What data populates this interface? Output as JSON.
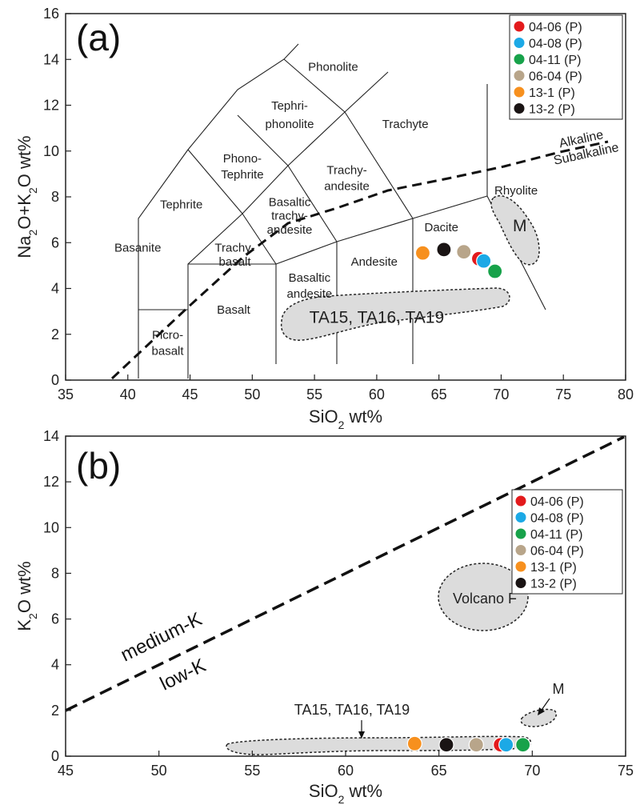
{
  "chart_data": [
    {
      "type": "scatter",
      "panel_label": "(a)",
      "xlabel": "SiO2 wt%",
      "ylabel": "Na2O+K2O wt%",
      "xlim": [
        35,
        80
      ],
      "ylim": [
        0,
        16
      ],
      "xticks": [
        "35",
        "40",
        "45",
        "50",
        "55",
        "60",
        "65",
        "70",
        "75",
        "80"
      ],
      "yticks": [
        "0",
        "2",
        "4",
        "6",
        "8",
        "10",
        "12",
        "14",
        "16"
      ],
      "legend_position": "top-right",
      "fields": [
        {
          "name": "Phonolite",
          "x": 56.5,
          "y": 13.5
        },
        {
          "name": "Tephri-",
          "x": 53.0,
          "y": 11.8
        },
        {
          "name": "phonolite",
          "x": 53.0,
          "y": 11.0
        },
        {
          "name": "Trachyte",
          "x": 62.3,
          "y": 11.0
        },
        {
          "name": "Phono-",
          "x": 49.2,
          "y": 9.5
        },
        {
          "name": "Tephrite",
          "x": 49.2,
          "y": 8.8
        },
        {
          "name": "Trachy-",
          "x": 57.6,
          "y": 9.0
        },
        {
          "name": "andesite",
          "x": 57.6,
          "y": 8.3
        },
        {
          "name": "Tephrite",
          "x": 44.3,
          "y": 7.5
        },
        {
          "name": "Basaltic",
          "x": 53.0,
          "y": 7.6
        },
        {
          "name": "trachy-",
          "x": 53.0,
          "y": 7.0
        },
        {
          "name": "andesite",
          "x": 53.0,
          "y": 6.4
        },
        {
          "name": "Rhyolite",
          "x": 71.2,
          "y": 8.1
        },
        {
          "name": "Dacite",
          "x": 65.2,
          "y": 6.5
        },
        {
          "name": "Basanite",
          "x": 40.8,
          "y": 5.6
        },
        {
          "name": "Trachy-",
          "x": 48.6,
          "y": 5.6
        },
        {
          "name": "basalt",
          "x": 48.6,
          "y": 5.0
        },
        {
          "name": "Andesite",
          "x": 59.8,
          "y": 5.0
        },
        {
          "name": "Basaltic",
          "x": 54.6,
          "y": 4.3
        },
        {
          "name": "andesite",
          "x": 54.6,
          "y": 3.6
        },
        {
          "name": "Basalt",
          "x": 48.5,
          "y": 2.9
        },
        {
          "name": "Picro-",
          "x": 43.2,
          "y": 1.8
        },
        {
          "name": "basalt",
          "x": 43.2,
          "y": 1.1
        },
        {
          "name": "M",
          "x": 71.5,
          "y": 6.5
        },
        {
          "name": "TA15, TA16, TA19",
          "x": 60.0,
          "y": 2.5
        }
      ],
      "boundary_labels": [
        {
          "text": "Alkaline",
          "x": 76.5,
          "y": 10.35,
          "angle": -12
        },
        {
          "text": "Subalkaline",
          "x": 76.9,
          "y": 9.7,
          "angle": -12
        }
      ],
      "series": [
        {
          "name": "04-06 (P)",
          "color": "#e31a1c",
          "points": [
            [
              68.2,
              5.3
            ]
          ]
        },
        {
          "name": "04-08 (P)",
          "color": "#1ca9e6",
          "points": [
            [
              68.6,
              5.2
            ]
          ]
        },
        {
          "name": "04-11 (P)",
          "color": "#17a24a",
          "points": [
            [
              69.5,
              4.75
            ]
          ]
        },
        {
          "name": "06-04 (P)",
          "color": "#b8a58a",
          "points": [
            [
              67.0,
              5.6
            ]
          ]
        },
        {
          "name": "13-1 (P)",
          "color": "#f7901e",
          "points": [
            [
              63.7,
              5.55
            ]
          ]
        },
        {
          "name": "13-2 (P)",
          "color": "#1a1414",
          "points": [
            [
              65.4,
              5.7
            ]
          ]
        }
      ]
    },
    {
      "type": "scatter",
      "panel_label": "(b)",
      "xlabel": "SiO2 wt%",
      "ylabel": "K2O wt%",
      "xlim": [
        45,
        75
      ],
      "ylim": [
        0,
        14
      ],
      "xticks": [
        "45",
        "50",
        "55",
        "60",
        "65",
        "70",
        "75"
      ],
      "yticks": [
        "0",
        "2",
        "4",
        "6",
        "8",
        "10",
        "12",
        "14"
      ],
      "legend_position": "right",
      "divider_label_above": "medium-K",
      "divider_label_below": "low-K",
      "field_labels": {
        "volcano": "Volcano F",
        "m": "M",
        "ta": "TA15, TA16, TA19"
      },
      "series": [
        {
          "name": "04-06 (P)",
          "color": "#e31a1c",
          "points": [
            [
              68.3,
              0.5
            ]
          ]
        },
        {
          "name": "04-08 (P)",
          "color": "#1ca9e6",
          "points": [
            [
              68.6,
              0.5
            ]
          ]
        },
        {
          "name": "04-11 (P)",
          "color": "#17a24a",
          "points": [
            [
              69.5,
              0.5
            ]
          ]
        },
        {
          "name": "06-04 (P)",
          "color": "#b8a58a",
          "points": [
            [
              67.0,
              0.5
            ]
          ]
        },
        {
          "name": "13-1 (P)",
          "color": "#f7901e",
          "points": [
            [
              63.7,
              0.55
            ]
          ]
        },
        {
          "name": "13-2 (P)",
          "color": "#1a1414",
          "points": [
            [
              65.4,
              0.5
            ]
          ]
        }
      ]
    }
  ]
}
